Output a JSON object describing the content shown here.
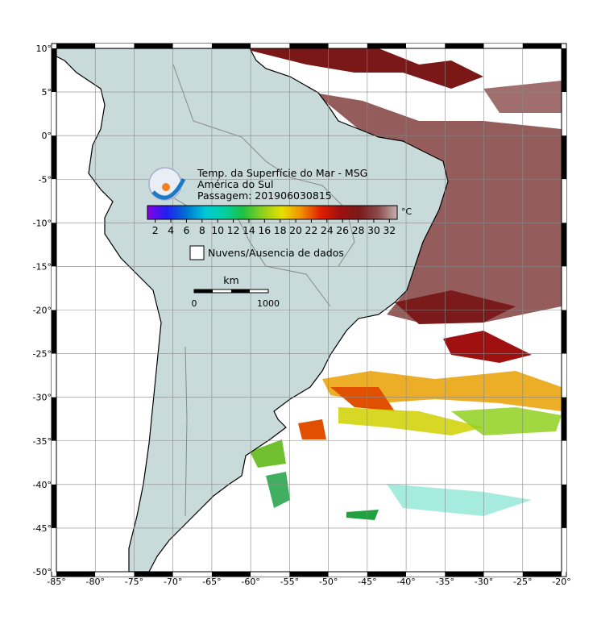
{
  "map": {
    "title_lines": [
      "Temp. da Superfície do Mar - MSG",
      "América do Sul",
      "Passagem: 201906030815"
    ],
    "lon_ticks": [
      {
        "value": -85,
        "label": "-85°"
      },
      {
        "value": -80,
        "label": "-80°"
      },
      {
        "value": -75,
        "label": "-75°"
      },
      {
        "value": -70,
        "label": "-70°"
      },
      {
        "value": -65,
        "label": "-65°"
      },
      {
        "value": -60,
        "label": "-60°"
      },
      {
        "value": -55,
        "label": "-55°"
      },
      {
        "value": -50,
        "label": "-50°"
      },
      {
        "value": -45,
        "label": "-45°"
      },
      {
        "value": -40,
        "label": "-40°"
      },
      {
        "value": -35,
        "label": "-35°"
      },
      {
        "value": -30,
        "label": "-30°"
      },
      {
        "value": -25,
        "label": "-25°"
      },
      {
        "value": -20,
        "label": "-20°"
      }
    ],
    "lat_ticks": [
      {
        "value": 10,
        "label": "10°"
      },
      {
        "value": 5,
        "label": "5°"
      },
      {
        "value": 0,
        "label": "0°"
      },
      {
        "value": -5,
        "label": "-5°"
      },
      {
        "value": -10,
        "label": "-10°"
      },
      {
        "value": -15,
        "label": "-15°"
      },
      {
        "value": -20,
        "label": "-20°"
      },
      {
        "value": -25,
        "label": "-25°"
      },
      {
        "value": -30,
        "label": "-30°"
      },
      {
        "value": -35,
        "label": "-35°"
      },
      {
        "value": -40,
        "label": "-40°"
      },
      {
        "value": -45,
        "label": "-45°"
      },
      {
        "value": -50,
        "label": "-50°"
      }
    ],
    "xlim": [
      -85,
      -20
    ],
    "ylim": [
      -50,
      10
    ],
    "colorbar": {
      "unit": "°C",
      "range": [
        1,
        33
      ],
      "ticks": [
        2,
        4,
        6,
        8,
        10,
        12,
        14,
        16,
        18,
        20,
        22,
        24,
        26,
        28,
        30,
        32
      ],
      "colors": [
        "#8a00e6",
        "#2020f0",
        "#0070d0",
        "#00c8d8",
        "#00d0a0",
        "#20c040",
        "#90d020",
        "#e8e000",
        "#f09000",
        "#e02000",
        "#a01010",
        "#7a1a1a",
        "#8a4a4a",
        "#c8b0b0"
      ]
    },
    "legend_label": "Nuvens/Ausencia de dados",
    "scale": {
      "unit": "km",
      "start": "0",
      "end": "1000"
    }
  }
}
